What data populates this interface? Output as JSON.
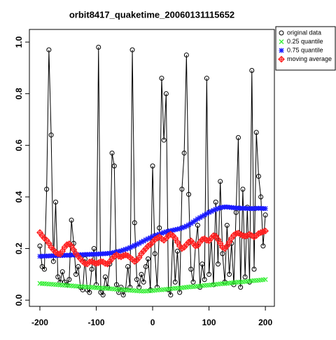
{
  "chart_data": {
    "type": "scatter",
    "title": "orbit8417_quaketime_20060131115652",
    "xlim": [
      -218.6,
      216
    ],
    "ylim": [
      -0.024,
      1.049
    ],
    "xticks": [
      -200,
      -100,
      0,
      100,
      200
    ],
    "yticks": [
      {
        "value": 0,
        "label": "0.0"
      },
      0.2,
      0.4,
      0.6,
      0.8,
      {
        "value": 1,
        "label": "1.0"
      }
    ],
    "legend": "outside-top-right",
    "x": [
      -200,
      -196,
      -192,
      -188,
      -184,
      -180,
      -176,
      -172,
      -168,
      -164,
      -160,
      -156,
      -152,
      -148,
      -144,
      -140,
      -136,
      -132,
      -128,
      -124,
      -120,
      -116,
      -112,
      -108,
      -104,
      -100,
      -96,
      -92,
      -88,
      -84,
      -80,
      -76,
      -72,
      -68,
      -64,
      -60,
      -56,
      -52,
      -48,
      -44,
      -40,
      -36,
      -32,
      -28,
      -24,
      -20,
      -16,
      -12,
      -8,
      -4,
      0,
      4,
      8,
      12,
      16,
      20,
      24,
      28,
      32,
      36,
      40,
      44,
      48,
      52,
      56,
      60,
      64,
      68,
      72,
      76,
      80,
      84,
      88,
      92,
      96,
      100,
      104,
      108,
      112,
      116,
      120,
      124,
      128,
      132,
      136,
      140,
      144,
      148,
      152,
      156,
      160,
      164,
      168,
      172,
      176,
      180,
      184,
      188,
      192,
      196,
      200
    ],
    "series": [
      {
        "name": "original data",
        "color": "#000000",
        "symbol": "circle",
        "line": true,
        "values": [
          0.21,
          0.13,
          0.12,
          0.43,
          0.97,
          0.64,
          0.15,
          0.38,
          0.09,
          0.07,
          0.11,
          0.07,
          0.06,
          0.08,
          0.31,
          0.22,
          0.1,
          0.13,
          0.05,
          0.04,
          0.16,
          0.04,
          0.03,
          0.12,
          0.2,
          0.06,
          0.98,
          0.03,
          0.02,
          0.09,
          0.05,
          0.14,
          0.57,
          0.52,
          0.06,
          0.03,
          0.05,
          0.02,
          0.04,
          0.13,
          0.05,
          0.97,
          0.3,
          0.08,
          0.05,
          0.1,
          0.07,
          0.13,
          0.16,
          0.04,
          0.52,
          0.18,
          0.05,
          0.28,
          0.86,
          0.62,
          0.8,
          0.04,
          0.02,
          0.25,
          0.07,
          0.19,
          0.03,
          0.43,
          0.57,
          0.95,
          0.41,
          0.12,
          0.07,
          0.21,
          0.29,
          0.05,
          0.14,
          0.08,
          0.86,
          0.1,
          0.24,
          0.06,
          0.38,
          0.14,
          0.46,
          0.18,
          0.07,
          0.29,
          0.1,
          0.22,
          0.06,
          0.34,
          0.63,
          0.05,
          0.43,
          0.09,
          0.36,
          0.07,
          0.89,
          0.12,
          0.65,
          0.48,
          0.4,
          0.21,
          0.33
        ]
      },
      {
        "name": "0.25 quantile",
        "color": "#33ee33",
        "symbol": "x",
        "line": false,
        "values": [
          0.065,
          0.064,
          0.064,
          0.063,
          0.062,
          0.062,
          0.061,
          0.06,
          0.06,
          0.059,
          0.058,
          0.058,
          0.057,
          0.056,
          0.056,
          0.055,
          0.054,
          0.054,
          0.053,
          0.052,
          0.052,
          0.051,
          0.05,
          0.05,
          0.049,
          0.048,
          0.048,
          0.047,
          0.046,
          0.046,
          0.045,
          0.044,
          0.044,
          0.043,
          0.042,
          0.042,
          0.041,
          0.04,
          0.04,
          0.039,
          0.038,
          0.038,
          0.037,
          0.036,
          0.036,
          0.035,
          0.035,
          0.035,
          0.036,
          0.036,
          0.037,
          0.038,
          0.039,
          0.04,
          0.04,
          0.041,
          0.042,
          0.043,
          0.044,
          0.045,
          0.046,
          0.046,
          0.047,
          0.048,
          0.049,
          0.05,
          0.051,
          0.052,
          0.052,
          0.053,
          0.054,
          0.055,
          0.056,
          0.057,
          0.058,
          0.058,
          0.059,
          0.06,
          0.061,
          0.062,
          0.063,
          0.064,
          0.064,
          0.065,
          0.066,
          0.067,
          0.068,
          0.069,
          0.07,
          0.07,
          0.071,
          0.072,
          0.073,
          0.074,
          0.075,
          0.076,
          0.076,
          0.077,
          0.078,
          0.079,
          0.08
        ]
      },
      {
        "name": "0.75 quantile",
        "color": "#1a1aff",
        "symbol": "asterisk",
        "line": false,
        "values": [
          0.17,
          0.17,
          0.171,
          0.171,
          0.171,
          0.172,
          0.172,
          0.172,
          0.173,
          0.173,
          0.173,
          0.174,
          0.174,
          0.174,
          0.175,
          0.175,
          0.175,
          0.176,
          0.176,
          0.176,
          0.177,
          0.177,
          0.177,
          0.178,
          0.178,
          0.178,
          0.179,
          0.179,
          0.18,
          0.18,
          0.181,
          0.182,
          0.183,
          0.185,
          0.187,
          0.189,
          0.191,
          0.194,
          0.197,
          0.2,
          0.204,
          0.208,
          0.212,
          0.216,
          0.22,
          0.225,
          0.229,
          0.234,
          0.238,
          0.242,
          0.246,
          0.25,
          0.253,
          0.256,
          0.259,
          0.262,
          0.265,
          0.267,
          0.269,
          0.271,
          0.273,
          0.275,
          0.277,
          0.28,
          0.283,
          0.287,
          0.292,
          0.297,
          0.303,
          0.309,
          0.315,
          0.32,
          0.325,
          0.33,
          0.335,
          0.34,
          0.344,
          0.348,
          0.352,
          0.355,
          0.358,
          0.36,
          0.361,
          0.361,
          0.36,
          0.359,
          0.358,
          0.357,
          0.357,
          0.356,
          0.356,
          0.356,
          0.355,
          0.355,
          0.355,
          0.355,
          0.356,
          0.356,
          0.356,
          0.355,
          0.355
        ]
      },
      {
        "name": "moving average",
        "color": "#ff2222",
        "symbol": "diamond-plus",
        "line": false,
        "values": [
          0.262,
          0.25,
          0.24,
          0.232,
          0.22,
          0.205,
          0.195,
          0.185,
          0.18,
          0.178,
          0.19,
          0.205,
          0.215,
          0.218,
          0.21,
          0.195,
          0.18,
          0.17,
          0.16,
          0.15,
          0.142,
          0.14,
          0.148,
          0.15,
          0.145,
          0.142,
          0.145,
          0.15,
          0.148,
          0.142,
          0.14,
          0.15,
          0.16,
          0.17,
          0.175,
          0.17,
          0.168,
          0.172,
          0.175,
          0.172,
          0.165,
          0.158,
          0.15,
          0.155,
          0.165,
          0.18,
          0.19,
          0.2,
          0.21,
          0.215,
          0.225,
          0.235,
          0.24,
          0.245,
          0.238,
          0.232,
          0.24,
          0.25,
          0.255,
          0.25,
          0.24,
          0.225,
          0.21,
          0.2,
          0.205,
          0.215,
          0.225,
          0.23,
          0.22,
          0.21,
          0.212,
          0.225,
          0.235,
          0.238,
          0.232,
          0.23,
          0.24,
          0.25,
          0.248,
          0.235,
          0.22,
          0.205,
          0.2,
          0.21,
          0.225,
          0.24,
          0.252,
          0.258,
          0.26,
          0.255,
          0.25,
          0.248,
          0.25,
          0.255,
          0.25,
          0.245,
          0.25,
          0.258,
          0.262,
          0.265,
          0.268
        ]
      }
    ]
  }
}
